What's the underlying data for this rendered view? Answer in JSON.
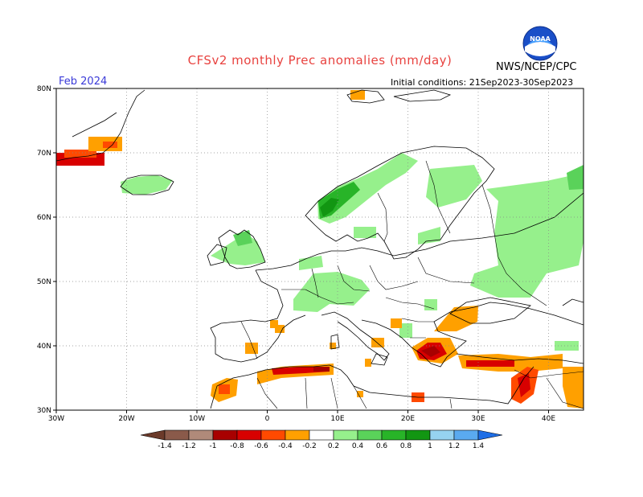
{
  "title": "CFSv2 monthly Prec anomalies (mm/day)",
  "period": "Feb 2024",
  "initial_conditions": "Initial conditions: 21Sep2023-30Sep2023",
  "agency": "NWS/NCEP/CPC",
  "logo_text": "NOAA",
  "map": {
    "lon_range": [
      -30,
      45
    ],
    "lat_range": [
      30,
      80
    ],
    "x_ticks": [
      "30W",
      "20W",
      "10W",
      "0",
      "10E",
      "20E",
      "30E",
      "40E"
    ],
    "y_ticks": [
      "80N",
      "70N",
      "60N",
      "50N",
      "40N",
      "30N"
    ],
    "grid": "dotted"
  },
  "colorbar": {
    "labels": [
      "-1.4",
      "-1.2",
      "-1",
      "-0.8",
      "-0.6",
      "-0.4",
      "-0.2",
      "0.2",
      "0.4",
      "0.6",
      "0.8",
      "1",
      "1.2",
      "1.4"
    ],
    "colors": {
      "lt_m14": "#6b3a2a",
      "m14_m12": "#8a5a4a",
      "m12_m1": "#b08a7a",
      "m1_m08": "#a80000",
      "m08_m06": "#d80000",
      "m06_m04": "#ff4a00",
      "m04_m02": "#ffa000",
      "neutral": "#ffffff",
      "p02_p04": "#96f08c",
      "p04_p06": "#5ad25a",
      "p06_p08": "#28b428",
      "p08_p1": "#129612",
      "p1_p12": "#96d2f0",
      "p12_p14": "#5aaaf0",
      "gt_p14": "#1e6ee6"
    }
  },
  "anomaly_regions": [
    {
      "name": "greenland-east-coast",
      "level": "-0.4..-0.2"
    },
    {
      "name": "greenland-southeast",
      "level": "-0.8..-0.4"
    },
    {
      "name": "iceland",
      "level": "0.2..0.4"
    },
    {
      "name": "norway-coast",
      "level": "0.4..1.0"
    },
    {
      "name": "finland",
      "level": "0.2..0.4"
    },
    {
      "name": "western-russia",
      "level": "0.2..0.4"
    },
    {
      "name": "british-isles",
      "level": "0.2..0.4"
    },
    {
      "name": "central-europe",
      "level": "0.2..0.4"
    },
    {
      "name": "iberia",
      "level": "-0.4..-0.2"
    },
    {
      "name": "northwest-africa",
      "level": "-1.0..-0.4"
    },
    {
      "name": "greece-aegean",
      "level": "-1.0..-0.4"
    },
    {
      "name": "turkey",
      "level": "-0.6..-0.2"
    },
    {
      "name": "levant",
      "level": "-1.0..-0.2"
    },
    {
      "name": "svalbard",
      "level": "-0.4..-0.2"
    }
  ]
}
